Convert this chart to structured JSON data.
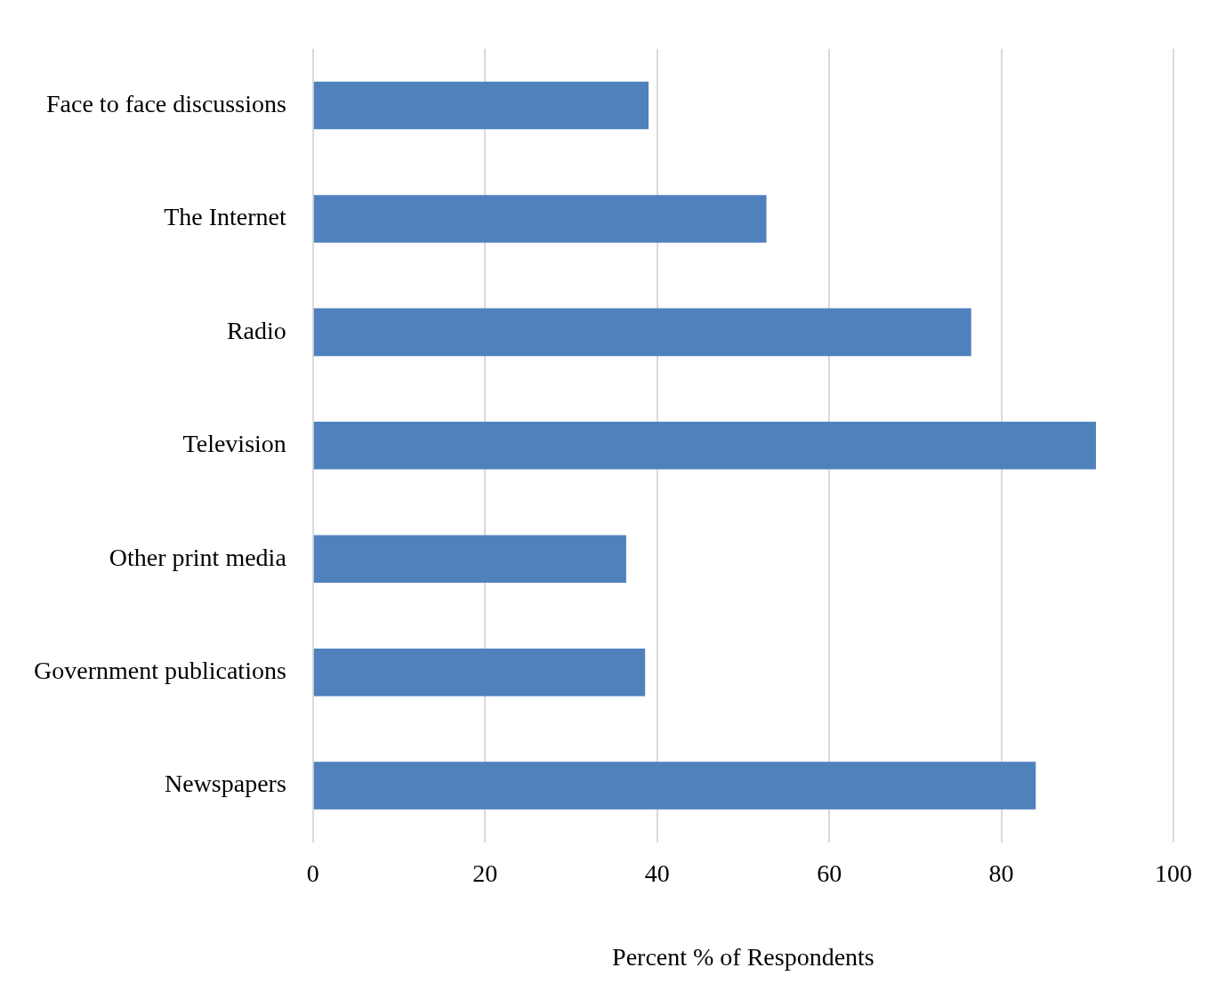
{
  "chart_data": {
    "type": "bar",
    "orientation": "horizontal",
    "categories": [
      "Face to face discussions",
      "The Internet",
      "Radio",
      "Television",
      "Other print media",
      "Government publications",
      "Newspapers"
    ],
    "values": [
      39,
      52.7,
      76.5,
      91,
      36.4,
      38.6,
      84
    ],
    "color": "#4f81bd",
    "xlim": [
      0,
      100
    ],
    "xticks": [
      0,
      20,
      40,
      60,
      80,
      100
    ],
    "xlabel": "Percent % of Respondents",
    "grid": "x"
  }
}
